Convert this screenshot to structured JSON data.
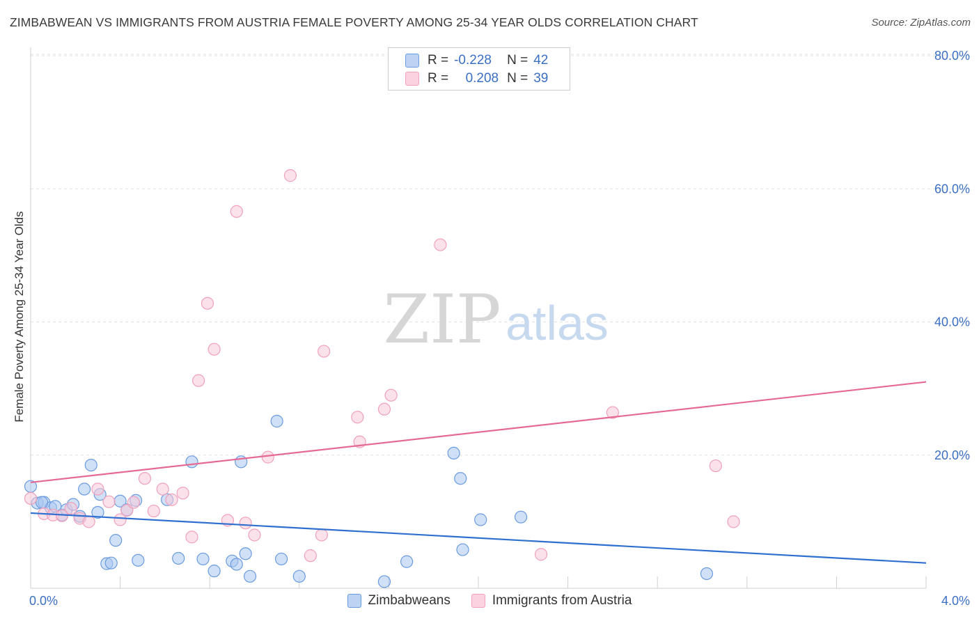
{
  "title": "ZIMBABWEAN VS IMMIGRANTS FROM AUSTRIA FEMALE POVERTY AMONG 25-34 YEAR OLDS CORRELATION CHART",
  "source": "Source: ZipAtlas.com",
  "watermark": {
    "zip": "ZIP",
    "atlas": "atlas"
  },
  "legend_top": {
    "rows": [
      {
        "r_label": "R =",
        "r_value": "-0.228",
        "n_label": "N =",
        "n_value": "42"
      },
      {
        "r_label": "R =",
        "r_value": "0.208",
        "n_label": "N =",
        "n_value": "39"
      }
    ]
  },
  "chart_data": {
    "type": "scatter",
    "title": "ZIMBABWEAN VS IMMIGRANTS FROM AUSTRIA FEMALE POVERTY AMONG 25-34 YEAR OLDS CORRELATION CHART",
    "xlabel": "",
    "ylabel": "Female Poverty Among 25-34 Year Olds",
    "xlim": [
      0,
      4
    ],
    "ylim": [
      0,
      80
    ],
    "x_tick_labels": [
      "0.0%",
      "4.0%"
    ],
    "y_tick_labels": [
      "20.0%",
      "40.0%",
      "60.0%",
      "80.0%"
    ],
    "y_ticks": [
      20,
      40,
      60,
      80
    ],
    "grid": true,
    "legend_position": "bottom",
    "series": [
      {
        "name": "Zimbabweans",
        "color": "#6a9be0",
        "fill": "#a9c6f0",
        "trend": {
          "x0": 0,
          "y0": 11.3,
          "x1": 4,
          "y1": 3.8,
          "color": "#2e6fcf"
        },
        "points": [
          [
            0.0,
            15.3
          ],
          [
            0.03,
            12.8
          ],
          [
            0.06,
            12.9
          ],
          [
            0.09,
            12.1
          ],
          [
            0.11,
            12.3
          ],
          [
            0.14,
            11.0
          ],
          [
            0.16,
            11.8
          ],
          [
            0.19,
            12.6
          ],
          [
            0.22,
            10.8
          ],
          [
            0.24,
            14.9
          ],
          [
            0.27,
            18.5
          ],
          [
            0.3,
            11.4
          ],
          [
            0.31,
            14.1
          ],
          [
            0.34,
            3.7
          ],
          [
            0.36,
            3.8
          ],
          [
            0.38,
            7.2
          ],
          [
            0.4,
            13.1
          ],
          [
            0.43,
            11.8
          ],
          [
            0.47,
            13.2
          ],
          [
            0.48,
            4.2
          ],
          [
            0.61,
            13.3
          ],
          [
            0.66,
            4.5
          ],
          [
            0.72,
            19.0
          ],
          [
            0.77,
            4.4
          ],
          [
            0.82,
            2.6
          ],
          [
            0.9,
            4.1
          ],
          [
            0.92,
            3.6
          ],
          [
            0.94,
            19.0
          ],
          [
            0.96,
            5.2
          ],
          [
            0.98,
            1.8
          ],
          [
            1.1,
            25.1
          ],
          [
            1.12,
            4.4
          ],
          [
            1.2,
            1.8
          ],
          [
            1.58,
            1.0
          ],
          [
            1.68,
            4.0
          ],
          [
            1.89,
            20.3
          ],
          [
            1.92,
            16.5
          ],
          [
            1.93,
            5.8
          ],
          [
            2.01,
            10.3
          ],
          [
            2.19,
            10.7
          ],
          [
            3.02,
            2.2
          ],
          [
            0.05,
            12.9
          ]
        ]
      },
      {
        "name": "Immigrants from Austria",
        "color": "#f0a0ba",
        "fill": "#f8c8d8",
        "trend": {
          "x0": 0,
          "y0": 15.9,
          "x1": 4,
          "y1": 31.0,
          "color": "#e46a92"
        },
        "points": [
          [
            0.0,
            13.5
          ],
          [
            0.06,
            11.2
          ],
          [
            0.1,
            11.0
          ],
          [
            0.14,
            10.9
          ],
          [
            0.18,
            12.0
          ],
          [
            0.22,
            10.5
          ],
          [
            0.26,
            10.0
          ],
          [
            0.3,
            14.9
          ],
          [
            0.35,
            13.0
          ],
          [
            0.4,
            10.3
          ],
          [
            0.43,
            11.7
          ],
          [
            0.46,
            12.9
          ],
          [
            0.51,
            16.5
          ],
          [
            0.55,
            11.6
          ],
          [
            0.59,
            14.9
          ],
          [
            0.63,
            13.3
          ],
          [
            0.68,
            14.3
          ],
          [
            0.72,
            7.7
          ],
          [
            0.75,
            31.2
          ],
          [
            0.79,
            42.8
          ],
          [
            0.82,
            35.9
          ],
          [
            0.88,
            10.2
          ],
          [
            0.92,
            56.6
          ],
          [
            0.96,
            9.8
          ],
          [
            1.0,
            8.0
          ],
          [
            1.06,
            19.7
          ],
          [
            1.16,
            62.0
          ],
          [
            1.25,
            4.9
          ],
          [
            1.3,
            8.0
          ],
          [
            1.31,
            35.6
          ],
          [
            1.46,
            25.7
          ],
          [
            1.47,
            22.0
          ],
          [
            1.58,
            26.9
          ],
          [
            1.61,
            29.0
          ],
          [
            1.83,
            51.6
          ],
          [
            2.28,
            5.1
          ],
          [
            2.6,
            26.4
          ],
          [
            3.06,
            18.4
          ],
          [
            3.14,
            10.0
          ]
        ]
      }
    ]
  }
}
